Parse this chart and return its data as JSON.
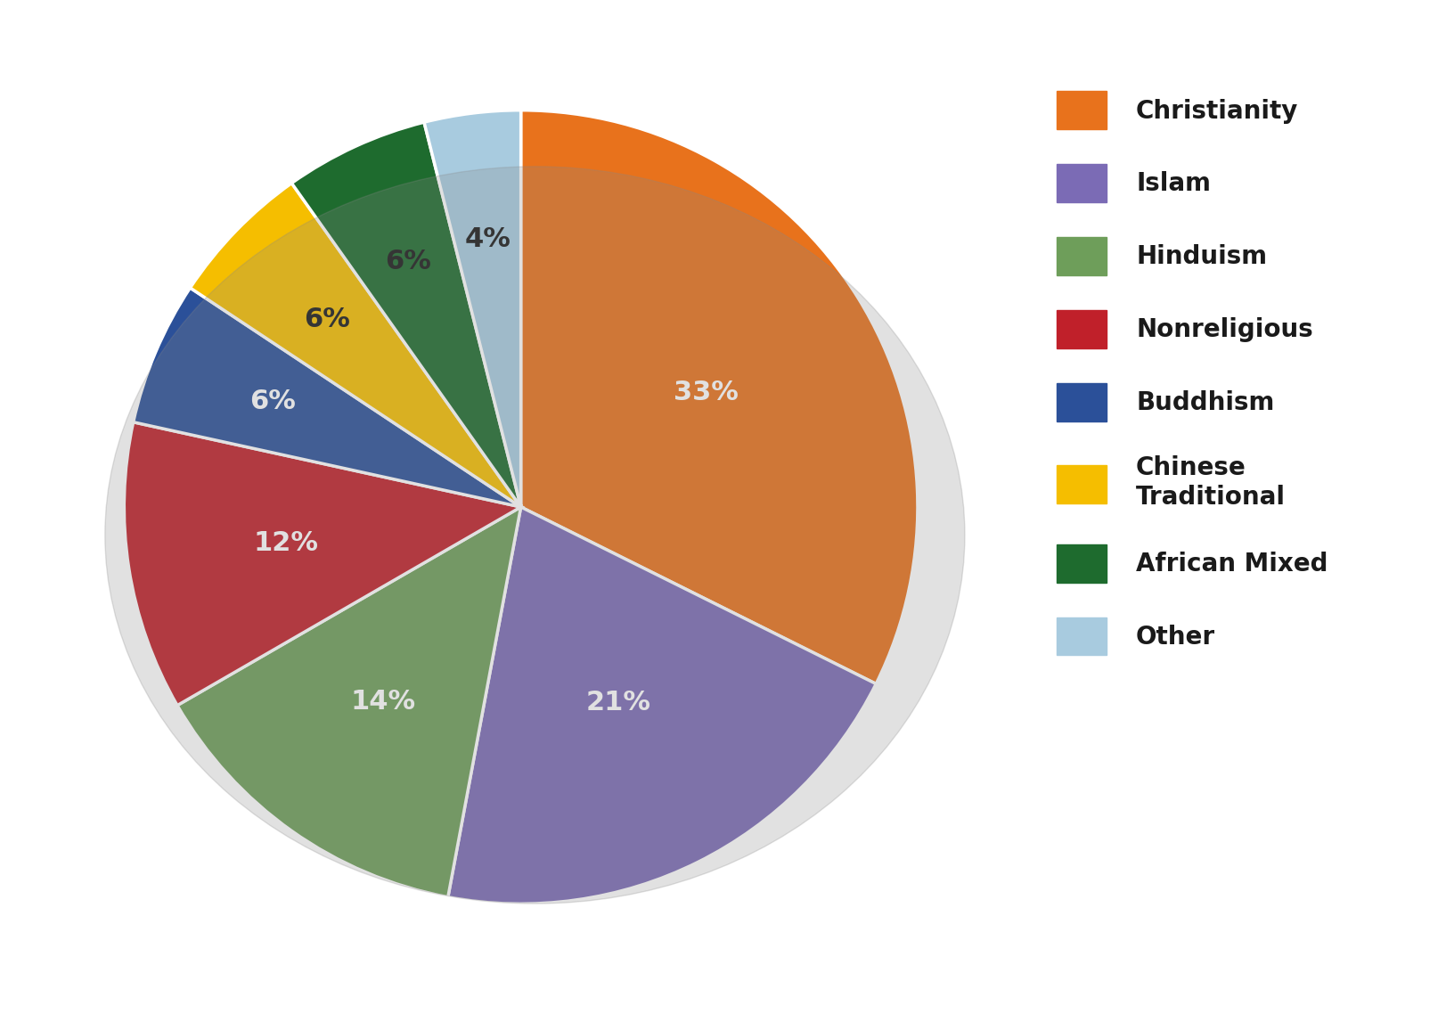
{
  "labels": [
    "Christianity",
    "Islam",
    "Hinduism",
    "Nonreligious",
    "Buddhism",
    "Chinese Traditional",
    "African Mixed",
    "Other"
  ],
  "values": [
    33,
    21,
    14,
    12,
    6,
    6,
    6,
    4
  ],
  "colors": [
    "#E8721C",
    "#7B6BB5",
    "#6E9E5A",
    "#C0202A",
    "#2B5099",
    "#F5BE00",
    "#1E6B2E",
    "#A8CBDF"
  ],
  "label_colors": [
    "white",
    "white",
    "white",
    "white",
    "white",
    "#1a1a1a",
    "#1a1a1a",
    "#1a1a1a"
  ],
  "background_color": "#ffffff",
  "legend_labels": [
    "Christianity",
    "Islam",
    "Hinduism",
    "Nonreligious",
    "Buddhism",
    "Chinese\nTraditional",
    "African Mixed",
    "Other"
  ],
  "label_fontsize": 22,
  "legend_fontsize": 20
}
